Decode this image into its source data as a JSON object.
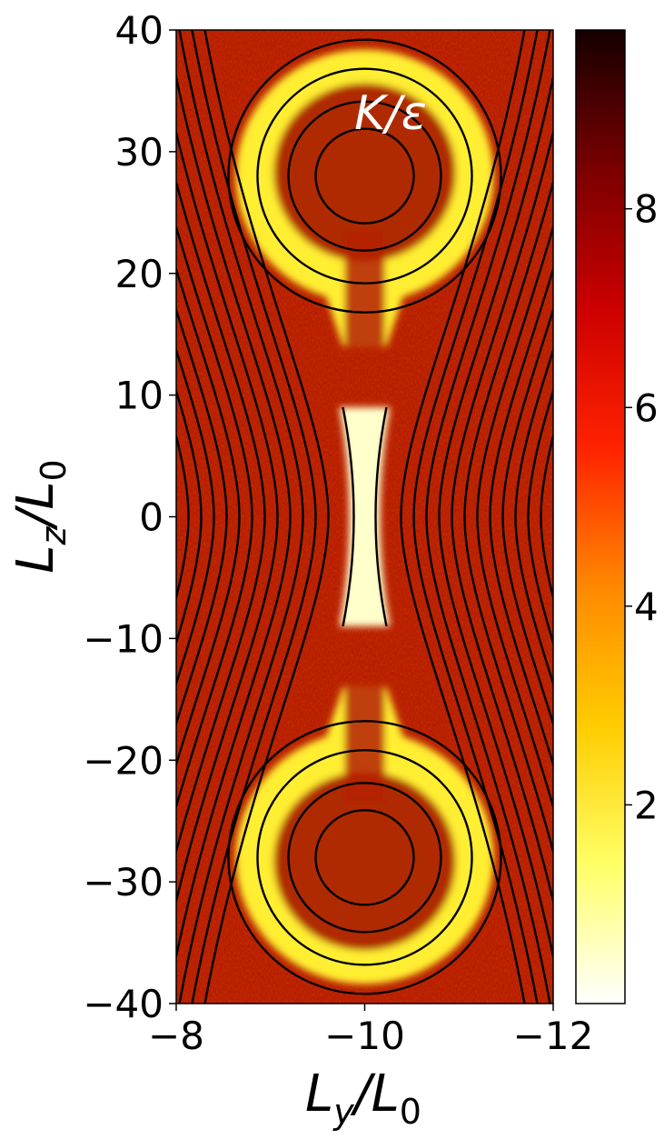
{
  "chart_data": {
    "type": "heatmap",
    "title": "",
    "annotation": "K/ε",
    "xlabel": "L_y/L_0",
    "ylabel": "L_z/L_0",
    "xlim": [
      -8,
      -12
    ],
    "ylim": [
      -40,
      40
    ],
    "x_ticks": [
      {
        "value": -8,
        "label": "−8"
      },
      {
        "value": -10,
        "label": "−10"
      },
      {
        "value": -12,
        "label": "−12"
      }
    ],
    "y_ticks": [
      {
        "value": 40,
        "label": "40"
      },
      {
        "value": 30,
        "label": "30"
      },
      {
        "value": 20,
        "label": "20"
      },
      {
        "value": 10,
        "label": "10"
      },
      {
        "value": 0,
        "label": "0"
      },
      {
        "value": -10,
        "label": "−10"
      },
      {
        "value": -20,
        "label": "−20"
      },
      {
        "value": -30,
        "label": "−30"
      },
      {
        "value": -40,
        "label": "−40"
      }
    ],
    "colorbar": {
      "colormap": "hot_r",
      "range": [
        0,
        9.8
      ],
      "ticks": [
        {
          "value": 2,
          "label": "2"
        },
        {
          "value": 4,
          "label": "4"
        },
        {
          "value": 6,
          "label": "6"
        },
        {
          "value": 8,
          "label": "8"
        }
      ],
      "colors": [
        "#ffffff",
        "#ffff66",
        "#ffcc00",
        "#ff8800",
        "#ff2200",
        "#cc0000",
        "#7a0000",
        "#160000"
      ]
    },
    "field_description": {
      "background_level": 8,
      "low_value_regions": [
        {
          "name": "upper-bubble",
          "center": [
            -10,
            28
          ]
        },
        {
          "name": "lower-bubble",
          "center": [
            -10,
            -28
          ]
        },
        {
          "name": "central-current-sheet",
          "center": [
            -10,
            0
          ]
        }
      ]
    },
    "contour_color": "#000000"
  }
}
